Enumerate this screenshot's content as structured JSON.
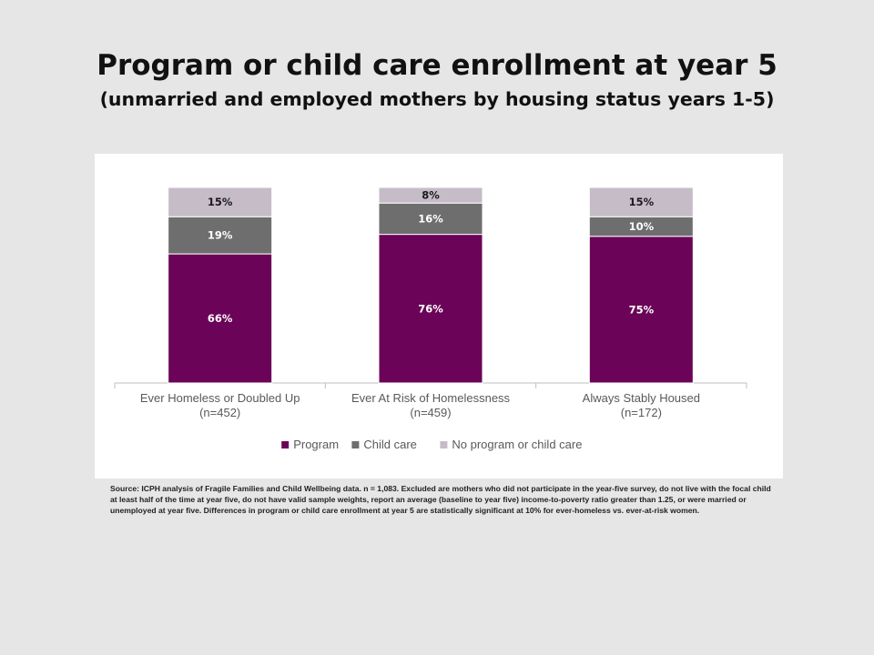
{
  "title": "Program or child care enrollment at year 5",
  "subtitle": "(unmarried and employed mothers by housing status years 1-5)",
  "source": "Source: ICPH analysis of Fragile Families and Child Wellbeing data. n = 1,083. Excluded are mothers who did not participate in the year-five survey, do not live with the focal child at least half of the time at year five, do not have valid sample weights, report an average (baseline to year five) income-to-poverty ratio greater than 1.25, or were married or unemployed at year five. Differences in program or child care enrollment at year 5 are statistically significant at 10% for ever-homeless vs. ever-at-risk women.",
  "chart_data": {
    "type": "bar",
    "stacked": true,
    "categories": [
      [
        "Ever Homeless or Doubled Up",
        "(n=452)"
      ],
      [
        "Ever At Risk of Homelessness",
        "(n=459)"
      ],
      [
        "Always Stably Housed",
        "(n=172)"
      ]
    ],
    "series": [
      {
        "name": "Program",
        "values": [
          66,
          76,
          75
        ],
        "labels": [
          "66%",
          "76%",
          "75%"
        ],
        "color": "#6b0458",
        "label_color": "#ffffff"
      },
      {
        "name": "Child care",
        "values": [
          19,
          16,
          10
        ],
        "labels": [
          "19%",
          "16%",
          "10%"
        ],
        "color": "#6e6e6e",
        "label_color": "#ffffff"
      },
      {
        "name": "No program or child care",
        "values": [
          15,
          8,
          15
        ],
        "labels": [
          "15%",
          "8%",
          "15%"
        ],
        "color": "#c5bcc8",
        "label_color": "#1a1a1a"
      }
    ],
    "ylim": [
      0,
      100
    ],
    "grid": false,
    "legend": "bottom"
  }
}
